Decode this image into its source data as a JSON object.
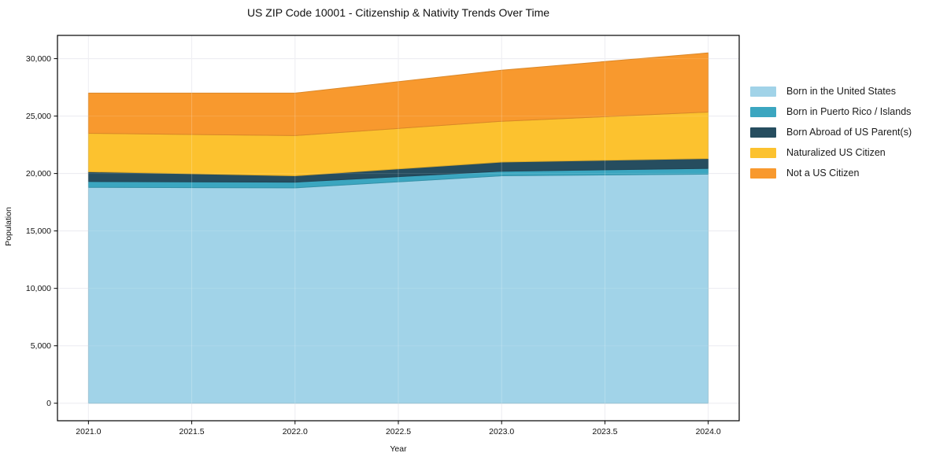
{
  "chart": {
    "title": "US ZIP Code 10001 - Citizenship & Nativity Trends Over Time"
  },
  "chart_data": {
    "type": "area",
    "stacked": true,
    "title": "US ZIP Code 10001 - Citizenship & Nativity Trends Over Time",
    "xlabel": "Year",
    "ylabel": "Population",
    "x": [
      2021,
      2022,
      2023,
      2024
    ],
    "series": [
      {
        "name": "Born in the United States",
        "color": "#A1D3E8",
        "values": [
          18800,
          18750,
          19800,
          19950
        ]
      },
      {
        "name": "Born in Puerto Rico / Islands",
        "color": "#3BA6C0",
        "values": [
          500,
          500,
          400,
          500
        ]
      },
      {
        "name": "Born Abroad of US Parent(s)",
        "color": "#264D5F",
        "values": [
          850,
          550,
          800,
          850
        ]
      },
      {
        "name": "Naturalized US Citizen",
        "color": "#FCC22F",
        "values": [
          3350,
          3500,
          3550,
          4050
        ]
      },
      {
        "name": "Not a US Citizen",
        "color": "#F8992E",
        "values": [
          3500,
          3700,
          4450,
          5150
        ]
      }
    ],
    "x_tick_labels": [
      "2021.0",
      "2021.5",
      "2022.0",
      "2022.5",
      "2023.0",
      "2023.5",
      "2024.0"
    ],
    "x_tick_values": [
      2021,
      2021.5,
      2022,
      2022.5,
      2023,
      2023.5,
      2024
    ],
    "y_tick_labels": [
      "0",
      "5,000",
      "10,000",
      "15,000",
      "20,000",
      "25,000",
      "30,000"
    ],
    "y_tick_values": [
      0,
      5000,
      10000,
      15000,
      20000,
      25000,
      30000
    ],
    "xlim": [
      2020.85,
      2024.15
    ],
    "ylim": [
      -1525,
      32025
    ],
    "grid": true,
    "grid_color": "#e9e9ef",
    "axes_edge_color": "#000000",
    "legend_position": "right"
  }
}
